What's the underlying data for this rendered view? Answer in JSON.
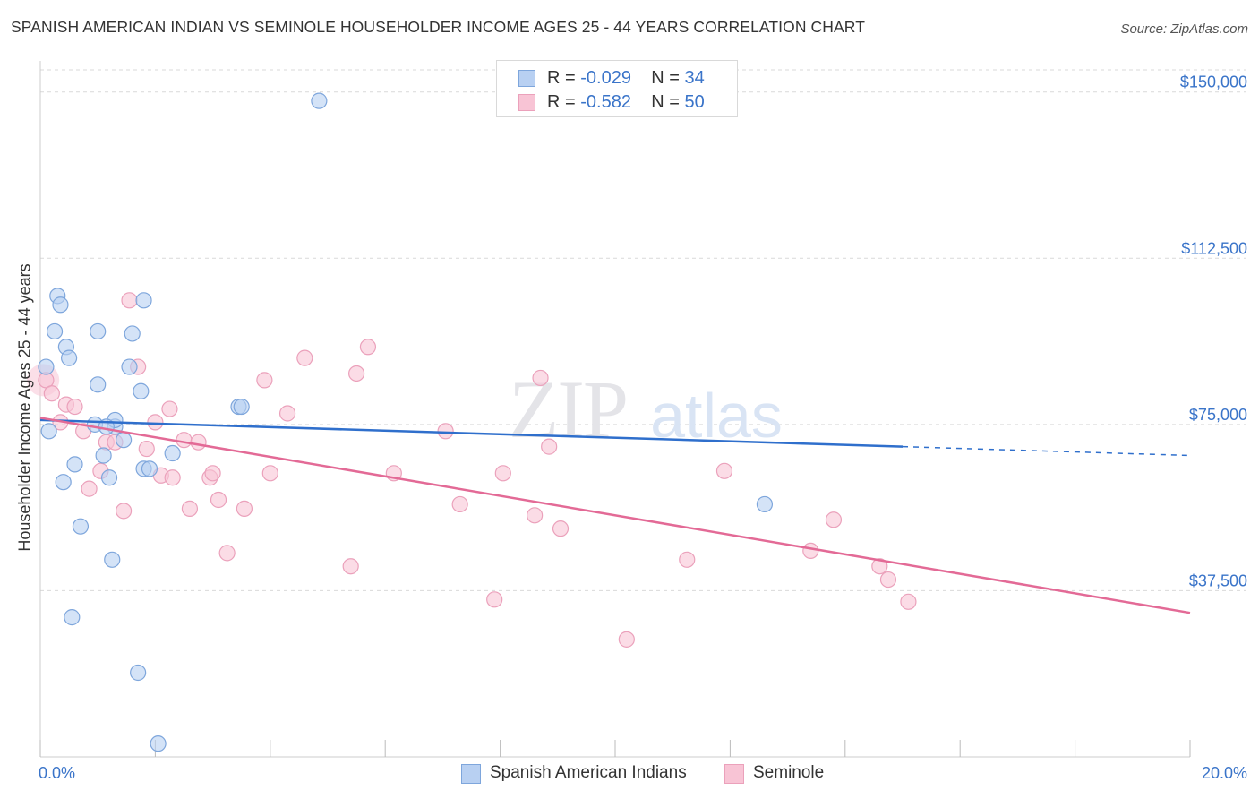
{
  "title": "SPANISH AMERICAN INDIAN VS SEMINOLE HOUSEHOLDER INCOME AGES 25 - 44 YEARS CORRELATION CHART",
  "source": "Source: ZipAtlas.com",
  "watermark": {
    "zip": "ZIP",
    "atlas": "atlas"
  },
  "legend_top": [
    {
      "r_label": "R =",
      "r_value": "-0.029",
      "n_label": "N =",
      "n_value": "34"
    },
    {
      "r_label": "R =",
      "r_value": "-0.582",
      "n_label": "N =",
      "n_value": "50"
    }
  ],
  "legend_bottom": [
    "Spanish American Indians",
    "Seminole"
  ],
  "colors": {
    "blue_fill": "#b8d0f2",
    "blue_stroke": "#7ea6dc",
    "blue_line": "#2f6fcc",
    "pink_fill": "#f8c4d5",
    "pink_stroke": "#eba1bb",
    "pink_line": "#e36a96",
    "tick_label": "#3a74c9",
    "grid": "#d9d9d9"
  },
  "chart_data": {
    "type": "scatter",
    "title": "SPANISH AMERICAN INDIAN VS SEMINOLE HOUSEHOLDER INCOME AGES 25 - 44 YEARS CORRELATION CHART",
    "xlabel": "",
    "ylabel": "Householder Income Ages 25 - 44 years",
    "xlim": [
      0,
      20
    ],
    "ylim": [
      0,
      155000
    ],
    "x_tick_labels": [
      "0.0%",
      "20.0%"
    ],
    "y_ticks": [
      37500,
      75000,
      112500,
      150000
    ],
    "y_tick_labels": [
      "$37,500",
      "$75,000",
      "$112,500",
      "$150,000"
    ],
    "series": [
      {
        "name": "Spanish American Indians",
        "r": -0.029,
        "n": 34,
        "points": [
          [
            0.1,
            88000
          ],
          [
            0.15,
            73500
          ],
          [
            0.25,
            96000
          ],
          [
            0.3,
            104000
          ],
          [
            0.35,
            102000
          ],
          [
            0.4,
            62000
          ],
          [
            0.45,
            92500
          ],
          [
            0.5,
            90000
          ],
          [
            0.55,
            31500
          ],
          [
            0.6,
            66000
          ],
          [
            0.7,
            52000
          ],
          [
            1.0,
            84000
          ],
          [
            1.0,
            96000
          ],
          [
            1.1,
            68000
          ],
          [
            1.2,
            63000
          ],
          [
            1.25,
            44500
          ],
          [
            1.3,
            74500
          ],
          [
            1.3,
            76000
          ],
          [
            1.45,
            71500
          ],
          [
            1.55,
            88000
          ],
          [
            1.6,
            95500
          ],
          [
            1.7,
            19000
          ],
          [
            1.75,
            82500
          ],
          [
            1.8,
            65000
          ],
          [
            1.8,
            103000
          ],
          [
            1.9,
            65000
          ],
          [
            2.3,
            68500
          ],
          [
            2.05,
            3000
          ],
          [
            3.45,
            79000
          ],
          [
            3.5,
            79000
          ],
          [
            4.85,
            148000
          ],
          [
            12.6,
            57000
          ],
          [
            0.95,
            75000
          ],
          [
            1.15,
            74500
          ]
        ],
        "trend": {
          "x": [
            0,
            15
          ],
          "y": [
            76000,
            70000
          ],
          "dashed_to": [
            20,
            68000
          ]
        }
      },
      {
        "name": "Seminole",
        "r": -0.582,
        "n": 50,
        "points": [
          [
            0.1,
            85000
          ],
          [
            0.2,
            82000
          ],
          [
            0.35,
            75500
          ],
          [
            0.45,
            79500
          ],
          [
            0.6,
            79000
          ],
          [
            0.75,
            73500
          ],
          [
            0.85,
            60500
          ],
          [
            1.05,
            64500
          ],
          [
            1.15,
            71000
          ],
          [
            1.3,
            71000
          ],
          [
            1.45,
            55500
          ],
          [
            1.55,
            103000
          ],
          [
            1.7,
            88000
          ],
          [
            1.85,
            69500
          ],
          [
            2.0,
            75500
          ],
          [
            2.1,
            63500
          ],
          [
            2.25,
            78500
          ],
          [
            2.3,
            63000
          ],
          [
            2.5,
            71500
          ],
          [
            2.6,
            56000
          ],
          [
            2.75,
            71000
          ],
          [
            2.95,
            63000
          ],
          [
            3.0,
            64000
          ],
          [
            3.1,
            58000
          ],
          [
            3.25,
            46000
          ],
          [
            3.55,
            56000
          ],
          [
            3.9,
            85000
          ],
          [
            4.0,
            64000
          ],
          [
            4.3,
            77500
          ],
          [
            4.6,
            90000
          ],
          [
            5.4,
            43000
          ],
          [
            5.5,
            86500
          ],
          [
            5.7,
            92500
          ],
          [
            6.15,
            64000
          ],
          [
            7.05,
            73500
          ],
          [
            7.3,
            57000
          ],
          [
            7.9,
            35500
          ],
          [
            8.05,
            64000
          ],
          [
            8.6,
            54500
          ],
          [
            8.7,
            85500
          ],
          [
            8.85,
            70000
          ],
          [
            9.05,
            51500
          ],
          [
            10.2,
            26500
          ],
          [
            11.25,
            44500
          ],
          [
            11.9,
            64500
          ],
          [
            13.4,
            46500
          ],
          [
            13.8,
            53500
          ],
          [
            14.6,
            43000
          ],
          [
            14.75,
            40000
          ],
          [
            15.1,
            35000
          ]
        ],
        "trend": {
          "x": [
            0,
            20
          ],
          "y": [
            76500,
            32500
          ]
        }
      }
    ]
  }
}
